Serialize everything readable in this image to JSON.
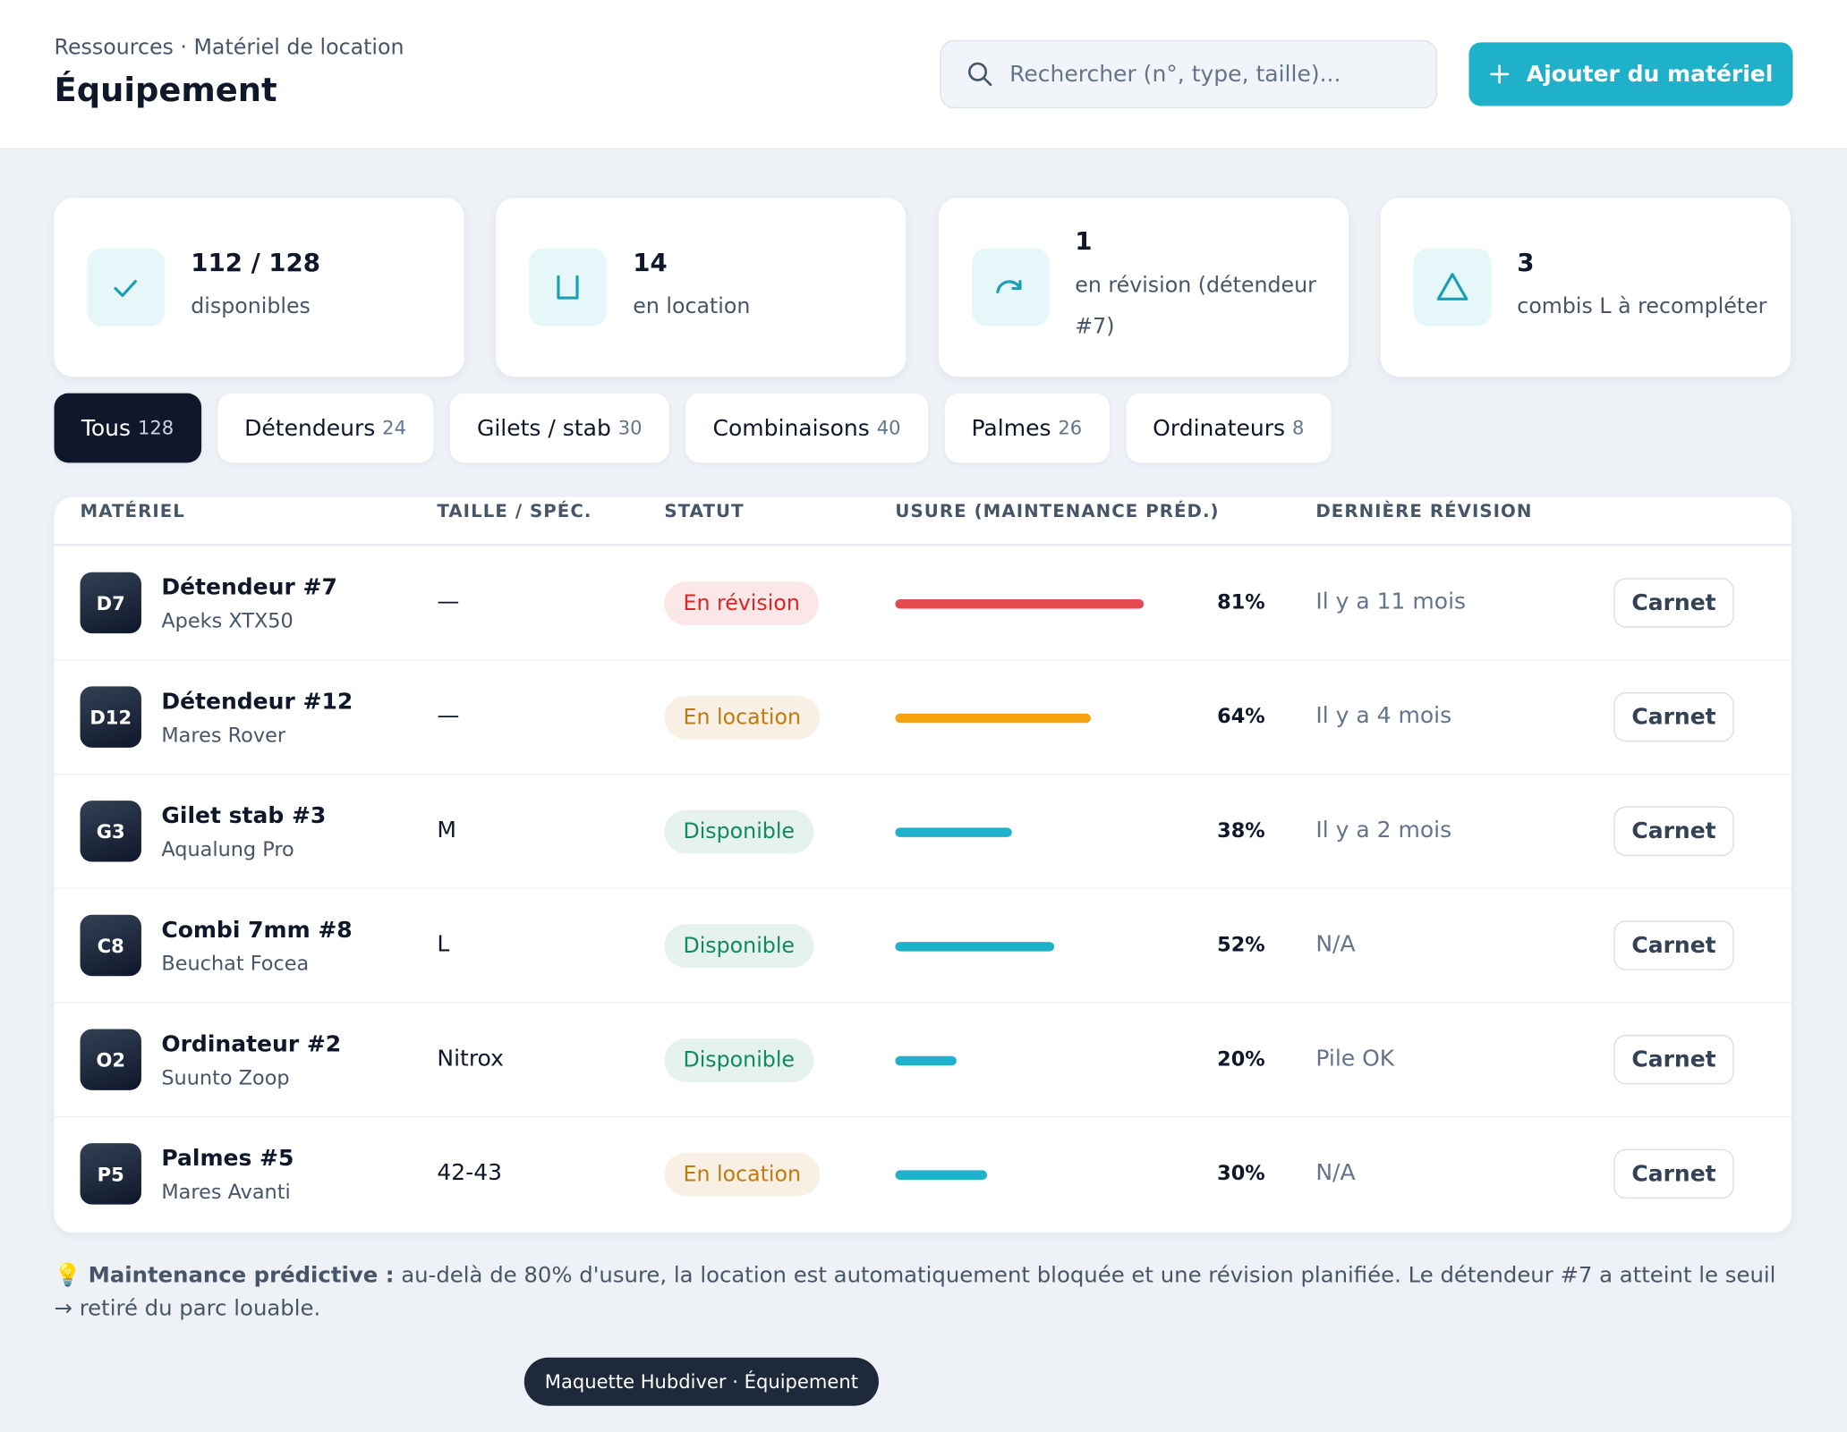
{
  "header": {
    "breadcrumb": "Ressources · Matériel de location",
    "title": "Équipement",
    "search_placeholder": "Rechercher (n°, type, taille)...",
    "add_button": "Ajouter du matériel"
  },
  "stats": [
    {
      "value": "112 / 128",
      "label": "disponibles"
    },
    {
      "value": "14",
      "label": "en location"
    },
    {
      "value": "1",
      "label": "en révision (détendeur #7)"
    },
    {
      "value": "3",
      "label": "combis L à recompléter"
    }
  ],
  "tabs": [
    {
      "label": "Tous",
      "count": 128
    },
    {
      "label": "Détendeurs",
      "count": 24
    },
    {
      "label": "Gilets / stab",
      "count": 30
    },
    {
      "label": "Combinaisons",
      "count": 40
    },
    {
      "label": "Palmes",
      "count": 26
    },
    {
      "label": "Ordinateurs",
      "count": 8
    }
  ],
  "table": {
    "columns": [
      "MATÉRIEL",
      "TAILLE / SPÉC.",
      "STATUT",
      "USURE (MAINTENANCE PRÉD.)",
      "DERNIÈRE RÉVISION"
    ],
    "rows": [
      {
        "code": "D7",
        "name": "Détendeur #7",
        "model": "Apeks XTX50",
        "size": "—",
        "status": "En révision",
        "status_color": "#dc2626",
        "wear": 81,
        "wear_label": "81%",
        "wear_color": "#e5484d",
        "revision": "Il y a 11 mois",
        "action": "Carnet"
      },
      {
        "code": "D12",
        "name": "Détendeur #12",
        "model": "Mares Rover",
        "size": "—",
        "status": "En location",
        "status_color": "#c27a0e",
        "wear": 64,
        "wear_label": "64%",
        "wear_color": "#f5a30f",
        "revision": "Il y a 4 mois",
        "action": "Carnet"
      },
      {
        "code": "G3",
        "name": "Gilet stab #3",
        "model": "Aqualung Pro",
        "size": "M",
        "status": "Disponible",
        "status_color": "#0f8a5f",
        "wear": 38,
        "wear_label": "38%",
        "wear_color": "#1fb1c9",
        "revision": "Il y a 2 mois",
        "action": "Carnet"
      },
      {
        "code": "C8",
        "name": "Combi 7mm #8",
        "model": "Beuchat Focea",
        "size": "L",
        "status": "Disponible",
        "status_color": "#0f8a5f",
        "wear": 52,
        "wear_label": "52%",
        "wear_color": "#1fb1c9",
        "revision": "N/A",
        "action": "Carnet"
      },
      {
        "code": "O2",
        "name": "Ordinateur #2",
        "model": "Suunto Zoop",
        "size": "Nitrox",
        "status": "Disponible",
        "status_color": "#0f8a5f",
        "wear": 20,
        "wear_label": "20%",
        "wear_color": "#1fb1c9",
        "revision": "Pile OK",
        "action": "Carnet"
      },
      {
        "code": "P5",
        "name": "Palmes #5",
        "model": "Mares Avanti",
        "size": "42-43",
        "status": "En location",
        "status_color": "#c27a0e",
        "wear": 30,
        "wear_label": "30%",
        "wear_color": "#1fb1c9",
        "revision": "N/A",
        "action": "Carnet"
      }
    ]
  },
  "note": {
    "label": "Maintenance prédictive :",
    "text": "au-delà de 80% d'usure, la location est automatiquement bloquée et une révision planifiée. Le détendeur #7 a atteint le seuil → retiré du parc louable."
  },
  "badge": "Maquette Hubdiver · Équipement"
}
